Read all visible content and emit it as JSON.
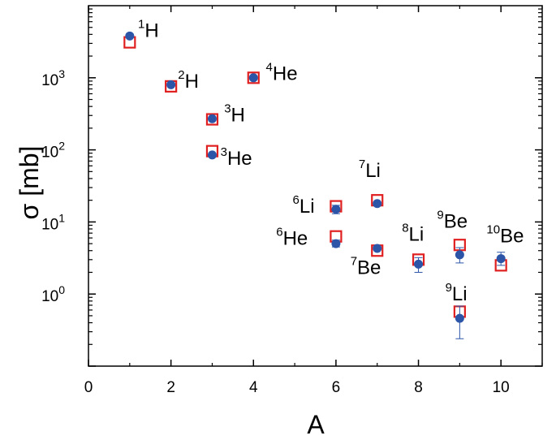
{
  "chart_data": {
    "type": "scatter",
    "title": "",
    "xlabel": "A",
    "ylabel": "σ [mb]",
    "xlim": [
      0,
      11
    ],
    "ylim": [
      0.1,
      10000
    ],
    "yscale": "log",
    "x_ticks": [
      0,
      2,
      4,
      6,
      8,
      10
    ],
    "y_ticks": [
      {
        "base": "10",
        "exp": "0",
        "value": 1
      },
      {
        "base": "10",
        "exp": "1",
        "value": 10
      },
      {
        "base": "10",
        "exp": "2",
        "value": 100
      },
      {
        "base": "10",
        "exp": "3",
        "value": 1000
      }
    ],
    "grid": false,
    "colors": {
      "open_square": "#e02020",
      "filled_circle": "#2c55a8"
    },
    "series": [
      {
        "marker": "open-square",
        "points": [
          {
            "x": 1,
            "y": 3100
          },
          {
            "x": 2,
            "y": 760
          },
          {
            "x": 3,
            "y": 265
          },
          {
            "x": 3,
            "y": 96
          },
          {
            "x": 4,
            "y": 1000
          },
          {
            "x": 6,
            "y": 16.5
          },
          {
            "x": 6,
            "y": 6.3
          },
          {
            "x": 7,
            "y": 20
          },
          {
            "x": 7,
            "y": 4.0
          },
          {
            "x": 8,
            "y": 3.0
          },
          {
            "x": 9,
            "y": 4.8
          },
          {
            "x": 9,
            "y": 0.57
          },
          {
            "x": 10,
            "y": 2.5
          }
        ]
      },
      {
        "marker": "filled-circle",
        "points": [
          {
            "x": 1,
            "y": 3800
          },
          {
            "x": 2,
            "y": 800
          },
          {
            "x": 3,
            "y": 270
          },
          {
            "x": 3,
            "y": 85
          },
          {
            "x": 4,
            "y": 1000
          },
          {
            "x": 6,
            "y": 15,
            "err_lo": 13,
            "err_hi": 17
          },
          {
            "x": 6,
            "y": 5.0,
            "err_lo": 4.5,
            "err_hi": 5.6
          },
          {
            "x": 7,
            "y": 18
          },
          {
            "x": 7,
            "y": 4.3
          },
          {
            "x": 8,
            "y": 2.6,
            "err_lo": 2.0,
            "err_hi": 3.2
          },
          {
            "x": 9,
            "y": 3.5,
            "err_lo": 2.7,
            "err_hi": 4.4
          },
          {
            "x": 9,
            "y": 0.46,
            "err_lo": 0.24,
            "err_hi": 0.68
          },
          {
            "x": 10,
            "y": 3.1,
            "err_lo": 2.5,
            "err_hi": 3.8
          }
        ]
      }
    ],
    "annotations": [
      {
        "mass": "1",
        "element": "H",
        "x": 1.2,
        "y": 3700
      },
      {
        "mass": "2",
        "element": "H",
        "x": 2.17,
        "y": 730
      },
      {
        "mass": "3",
        "element": "H",
        "x": 3.29,
        "y": 250
      },
      {
        "mass": "3",
        "element": "He",
        "x": 3.2,
        "y": 62
      },
      {
        "mass": "4",
        "element": "He",
        "x": 4.3,
        "y": 935
      },
      {
        "mass": "6",
        "element": "Li",
        "x": 4.95,
        "y": 13.5
      },
      {
        "mass": "6",
        "element": "He",
        "x": 4.55,
        "y": 4.85
      },
      {
        "mass": "7",
        "element": "Li",
        "x": 6.55,
        "y": 42
      },
      {
        "mass": "7",
        "element": "Be",
        "x": 6.35,
        "y": 1.9
      },
      {
        "mass": "8",
        "element": "Li",
        "x": 7.6,
        "y": 5.5
      },
      {
        "mass": "9",
        "element": "Be",
        "x": 8.45,
        "y": 8.3
      },
      {
        "mass": "9",
        "element": "Li",
        "x": 8.65,
        "y": 0.82
      },
      {
        "mass": "10",
        "element": "Be",
        "x": 9.65,
        "y": 5.2
      }
    ]
  }
}
